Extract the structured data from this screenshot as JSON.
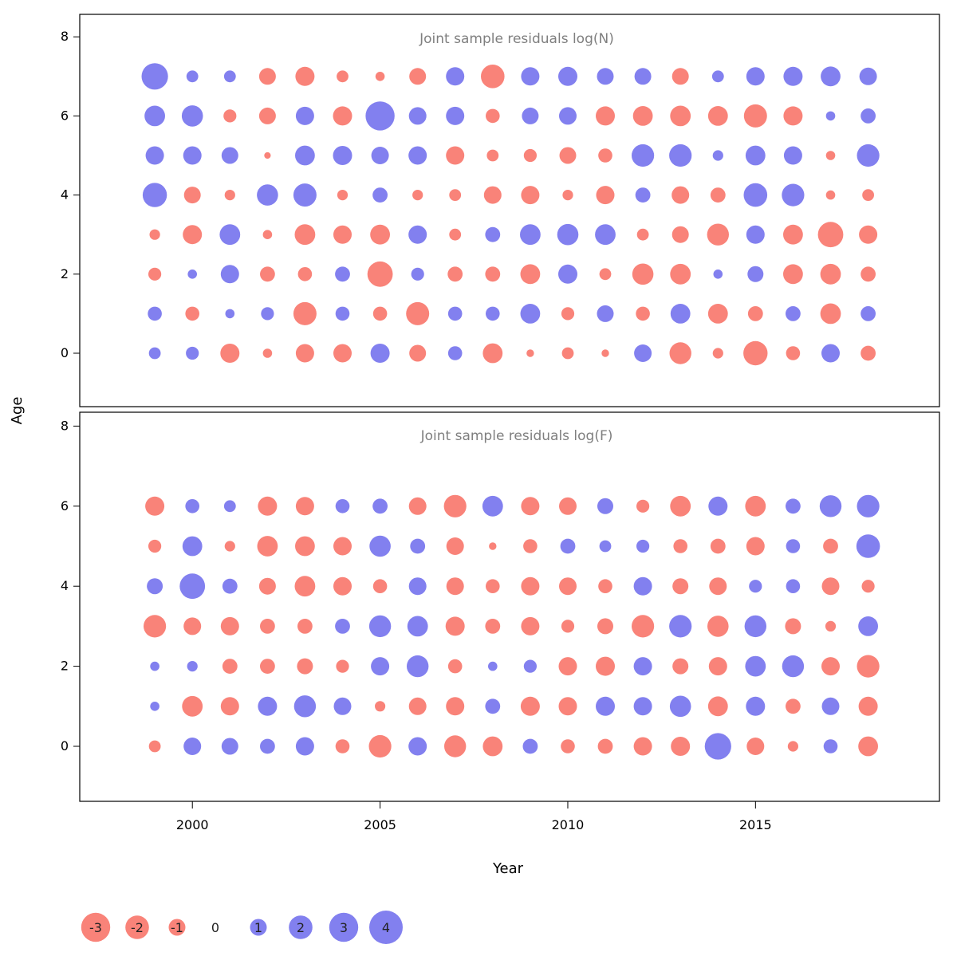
{
  "figure": {
    "xlabel": "Year",
    "ylabel": "Age",
    "x_ticks": [
      2000,
      2005,
      2010,
      2015
    ],
    "y_ticks": [
      0,
      2,
      4,
      6,
      8
    ],
    "colors": {
      "negative": "#f97c72",
      "positive": "#7b79ee"
    },
    "legend": {
      "values": [
        -3,
        -2,
        -1,
        0,
        1,
        2,
        3,
        4
      ]
    }
  },
  "chart_data": [
    {
      "type": "bubble",
      "title": "Joint sample residuals log(N)",
      "xlabel": "Year",
      "ylabel": "Age",
      "encoding": "circle area ~ |residual|, red = negative, blue = positive",
      "years": [
        1999,
        2000,
        2001,
        2002,
        2003,
        2004,
        2005,
        2006,
        2007,
        2008,
        2009,
        2010,
        2011,
        2012,
        2013,
        2014,
        2015,
        2016,
        2017,
        2018
      ],
      "residuals_by_age": {
        "0": [
          0.5,
          0.6,
          -1.3,
          -0.3,
          -1.2,
          -1.2,
          1.3,
          -1.0,
          0.7,
          -1.4,
          -0.2,
          -0.5,
          -0.2,
          1.1,
          -1.7,
          -0.4,
          -2.1,
          -0.7,
          1.2,
          -0.8
        ],
        "1": [
          0.7,
          -0.7,
          0.3,
          0.6,
          -1.9,
          0.7,
          -0.7,
          -1.9,
          0.7,
          0.7,
          1.4,
          -0.6,
          1.0,
          -0.7,
          1.4,
          -1.4,
          -0.8,
          0.8,
          -1.5,
          0.8
        ],
        "2": [
          -0.6,
          0.3,
          1.2,
          -0.8,
          -0.7,
          0.8,
          -2.3,
          0.6,
          -0.8,
          -0.8,
          -1.4,
          1.3,
          -0.5,
          -1.6,
          -1.5,
          0.3,
          0.9,
          -1.4,
          -1.5,
          -0.8
        ],
        "3": [
          -0.4,
          -1.3,
          1.5,
          -0.3,
          -1.5,
          -1.2,
          -1.4,
          1.2,
          -0.5,
          0.8,
          1.5,
          1.6,
          1.5,
          -0.5,
          -1.0,
          -1.7,
          1.2,
          -1.4,
          -2.3,
          -1.2
        ],
        "4": [
          2.1,
          -1.0,
          -0.4,
          1.6,
          1.9,
          -0.4,
          0.8,
          -0.4,
          -0.5,
          -1.1,
          -1.2,
          -0.4,
          -1.2,
          0.8,
          -1.1,
          -0.8,
          2.0,
          1.8,
          -0.3,
          -0.5
        ],
        "5": [
          1.2,
          1.2,
          1.0,
          -0.15,
          1.4,
          1.3,
          1.1,
          1.2,
          -1.2,
          -0.5,
          -0.6,
          -1.0,
          -0.7,
          1.8,
          1.8,
          0.4,
          1.4,
          1.2,
          -0.3,
          1.8
        ],
        "6": [
          1.5,
          1.6,
          -0.6,
          -1.0,
          1.2,
          -1.3,
          3.0,
          1.1,
          1.2,
          -0.7,
          1.0,
          1.1,
          -1.3,
          -1.4,
          -1.5,
          -1.4,
          -1.9,
          -1.3,
          0.3,
          0.8
        ],
        "7": [
          2.5,
          0.5,
          0.5,
          -1.0,
          -1.3,
          -0.5,
          -0.3,
          -1.0,
          1.2,
          -2.0,
          1.2,
          1.3,
          1.0,
          1.0,
          -1.0,
          0.5,
          1.2,
          1.3,
          1.4,
          1.1
        ]
      }
    },
    {
      "type": "bubble",
      "title": "Joint sample residuals log(F)",
      "xlabel": "Year",
      "ylabel": "Age",
      "encoding": "circle area ~ |residual|, red = negative, blue = positive",
      "years": [
        1999,
        2000,
        2001,
        2002,
        2003,
        2004,
        2005,
        2006,
        2007,
        2008,
        2009,
        2010,
        2011,
        2012,
        2013,
        2014,
        2015,
        2016,
        2017,
        2018
      ],
      "residuals_by_age": {
        "0": [
          -0.5,
          1.1,
          1.0,
          0.8,
          1.2,
          -0.7,
          -1.8,
          1.2,
          -1.7,
          -1.4,
          0.8,
          -0.7,
          -0.8,
          -1.2,
          -1.3,
          2.5,
          -1.1,
          -0.4,
          0.7,
          -1.4
        ],
        "1": [
          0.3,
          -1.5,
          -1.2,
          1.3,
          1.7,
          1.1,
          -0.4,
          -1.1,
          -1.2,
          0.8,
          -1.3,
          -1.2,
          1.3,
          1.2,
          1.6,
          -1.4,
          1.3,
          -0.8,
          1.1,
          -1.3
        ],
        "2": [
          0.3,
          0.4,
          -0.8,
          -0.8,
          -0.9,
          -0.6,
          1.2,
          1.7,
          -0.7,
          0.3,
          0.6,
          -1.2,
          -1.3,
          1.2,
          -0.9,
          -1.2,
          1.5,
          1.7,
          -1.2,
          -1.8
        ],
        "3": [
          -1.8,
          -1.1,
          -1.2,
          -0.8,
          -0.8,
          0.8,
          1.7,
          1.5,
          -1.3,
          -0.8,
          -1.2,
          -0.6,
          -0.9,
          -1.8,
          1.8,
          -1.6,
          1.7,
          -0.9,
          -0.4,
          1.4
        ],
        "4": [
          0.9,
          2.3,
          0.8,
          -1.0,
          -1.5,
          -1.2,
          -0.7,
          1.1,
          -1.1,
          -0.7,
          -1.2,
          -1.1,
          -0.7,
          1.2,
          -0.9,
          -1.1,
          0.6,
          0.7,
          -1.1,
          -0.6
        ],
        "5": [
          -0.6,
          1.4,
          -0.4,
          -1.5,
          -1.4,
          -1.2,
          1.6,
          0.8,
          -1.1,
          -0.2,
          -0.7,
          0.8,
          0.5,
          0.6,
          -0.7,
          -0.8,
          -1.2,
          0.7,
          -0.8,
          2.0
        ],
        "6": [
          -1.3,
          0.7,
          0.5,
          -1.3,
          -1.2,
          0.7,
          0.8,
          -1.1,
          -1.8,
          1.5,
          -1.2,
          -1.1,
          0.9,
          -0.6,
          -1.5,
          1.3,
          -1.5,
          0.8,
          1.7,
          1.8
        ]
      }
    }
  ]
}
